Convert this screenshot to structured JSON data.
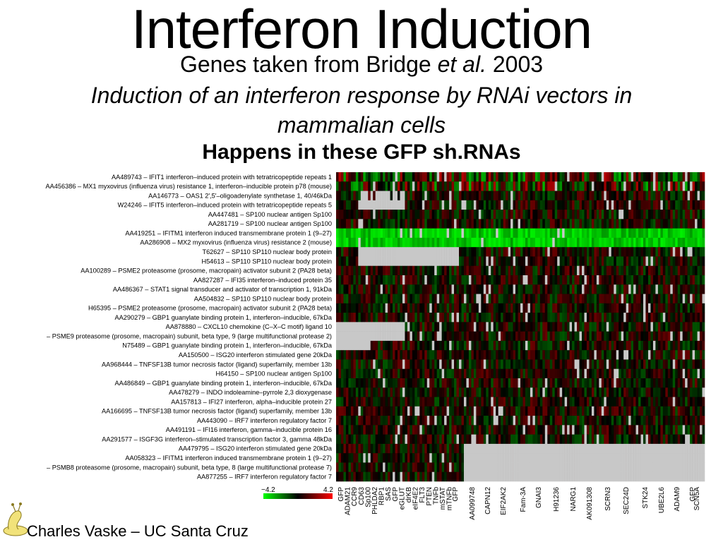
{
  "slide": {
    "title": "Interferon Induction",
    "subtitle_main": "Genes taken from Bridge ",
    "subtitle_italic": "et al.",
    "subtitle_year": " 2003",
    "description": "Induction of an interferon response by RNAi vectors in mammalian cells",
    "note": "Happens in these GFP sh.RNAs",
    "footer": "Charles Vaske – UC Santa Cruz"
  },
  "chart_data": {
    "type": "heatmap",
    "colorscale": {
      "min": -4.2,
      "max": 4.2,
      "min_label": "−4.2",
      "max_label": "4.2",
      "low_color": "#00ff00",
      "mid_color": "#000000",
      "high_color": "#ff0000",
      "missing_color": "#c8c8c8"
    },
    "rows": [
      "AA489743 – IFIT1 interferon–induced protein with tetratricopeptide repeats 1",
      "AA456386 – MX1 myxovirus (influenza virus) resistance 1, interferon–inducible protein p78 (mouse)",
      "AA146773 – OAS1 2',5'–oligoadenylate synthetase 1, 40/46kDa",
      "W24246 – IFIT5 interferon–induced protein with tetratricopeptide repeats 5",
      "AA447481 – SP100 nuclear antigen Sp100",
      "AA281719 – SP100 nuclear antigen Sp100",
      "AA419251 – IFITM1 interferon induced transmembrane protein 1 (9–27)",
      "AA286908 – MX2 myxovirus (influenza virus) resistance 2 (mouse)",
      "T62627 – SP110 SP110 nuclear body protein",
      "H54613 – SP110 SP110 nuclear body protein",
      "AA100289 – PSME2 proteasome (prosome, macropain) activator subunit 2 (PA28 beta)",
      "AA827287 – IFI35 interferon–induced protein 35",
      "AA486367 – STAT1 signal transducer and activator of transcription 1, 91kDa",
      "AA504832 – SP110 SP110 nuclear body protein",
      "H65395 – PSME2 proteasome (prosome, macropain) activator subunit 2 (PA28 beta)",
      "AA290279 – GBP1 guanylate binding protein 1, interferon–inducible, 67kDa",
      "AA878880 – CXCL10 chemokine (C–X–C motif) ligand 10",
      "– PSME9 proteasome (prosome, macropain) subunit, beta type, 9 (large multifunctional protease 2)",
      "N75489 – GBP1 guanylate binding protein 1, interferon–inducible, 67kDa",
      "AA150500 – ISG20 interferon stimulated gene 20kDa",
      "AA968444 – TNFSF13B tumor necrosis factor (ligand) superfamily, member 13b",
      "H64150 – SP100 nuclear antigen Sp100",
      "AA486849 – GBP1 guanylate binding protein 1, interferon–inducible, 67kDa",
      "AA478279 – INDO indoleamine–pyrrole 2,3 dioxygenase",
      "AA157813 – IFI27 interferon, alpha–inducible protein 27",
      "AA166695 – TNFSF13B tumor necrosis factor (ligand) superfamily, member 13b",
      "AA443090 – IRF7 interferon regulatory factor 7",
      "AA491191 – IFI16 interferon, gamma–inducible protein 16",
      "AA291577 – ISGF3G interferon–stimulated transcription factor 3, gamma 48kDa",
      "AA479795 – ISG20 interferon stimulated gene 20kDa",
      "AA058323 – IFITM1 interferon induced transmembrane protein 1 (9–27)",
      "– PSMB8 proteasome (prosome, macropain) subunit, beta type, 8 (large multifunctional protease 7)",
      "AA877255 – IRF7 interferon regulatory factor 7"
    ],
    "column_labels": [
      "GFP",
      "ADAM21",
      "CCR9",
      "CD63",
      "Sp100",
      "PHLDA2",
      "RBP1",
      "SAS",
      "GFP",
      "eGLUT",
      "drKB",
      "eIF4E2",
      "FLT3",
      "PTEN",
      "TNFb",
      "mSTAT",
      "mTNFb",
      "GFP",
      "AA099748",
      "CAPN12",
      "EIF2AK2",
      "Fam-3A",
      "GNAI3",
      "H91236",
      "NARG1",
      "AK091308",
      "SCRN3",
      "SEC24D",
      "STK24",
      "UBE2L6",
      "ADAM9",
      "GFP",
      "SCN5A"
    ]
  }
}
